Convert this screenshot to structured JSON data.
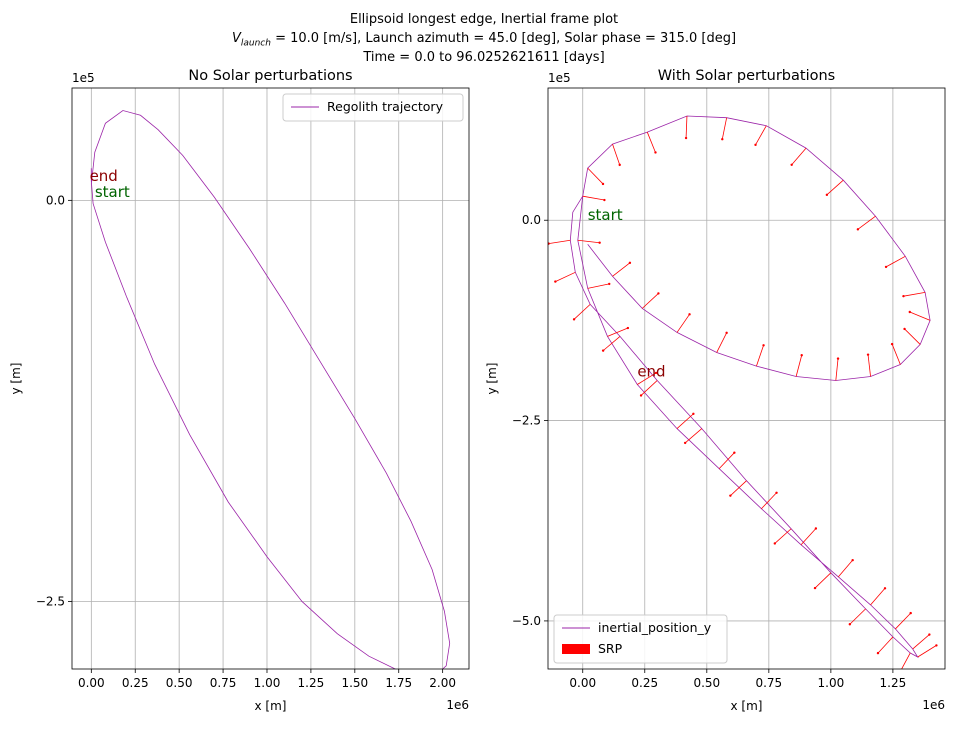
{
  "figure": {
    "title_line1": "Ellipsoid longest edge, Inertial frame plot",
    "title_line2_prefix": "V",
    "title_line2_sub": "launch",
    "title_line2_rest": " = 10.0 [m/s], Launch azimuth = 45.0 [deg], Solar phase = 315.0 [deg]",
    "title_line3": "Time = 0.0 to 96.0252621611 [days]"
  },
  "chart_data": [
    {
      "type": "line",
      "title": "No Solar perturbations",
      "xlabel": "x [m]",
      "ylabel": "y [m]",
      "x_offset_label": "1e6",
      "y_offset_label": "1e5",
      "x_scale": 1000000,
      "y_scale": 100000,
      "xlim": [
        -0.11,
        2.15
      ],
      "ylim": [
        -2.92,
        0.7
      ],
      "xticks": [
        0.0,
        0.25,
        0.5,
        0.75,
        1.0,
        1.25,
        1.5,
        1.75,
        2.0
      ],
      "xtick_labels": [
        "0.00",
        "0.25",
        "0.50",
        "0.75",
        "1.00",
        "1.25",
        "1.50",
        "1.75",
        "2.00"
      ],
      "yticks": [
        0.0,
        -2.5
      ],
      "ytick_labels": [
        "0.0",
        "−2.5"
      ],
      "grid": true,
      "legend": {
        "position": "top-right",
        "entries": [
          {
            "label": "Regolith trajectory",
            "color": "#9b24a8"
          }
        ]
      },
      "annotations": [
        {
          "text": "end",
          "x": -0.01,
          "y": 0.12,
          "color": "#8b0000"
        },
        {
          "text": "start",
          "x": 0.02,
          "y": 0.02,
          "color": "#006400"
        }
      ],
      "series": [
        {
          "label": "Regolith trajectory",
          "color": "#9b24a8",
          "x": [
            0.0,
            0.02,
            0.08,
            0.18,
            0.28,
            0.38,
            0.52,
            0.7,
            0.9,
            1.1,
            1.3,
            1.5,
            1.68,
            1.82,
            1.94,
            2.01,
            2.04,
            2.02,
            1.96,
            1.86,
            1.73,
            1.58,
            1.4,
            1.2,
            1.0,
            0.78,
            0.56,
            0.36,
            0.2,
            0.08,
            0.01,
            0.0,
            0.0
          ],
          "y": [
            0.1,
            0.3,
            0.48,
            0.56,
            0.53,
            0.44,
            0.28,
            0.02,
            -0.3,
            -0.64,
            -1.0,
            -1.36,
            -1.7,
            -2.0,
            -2.3,
            -2.56,
            -2.76,
            -2.9,
            -2.96,
            -2.96,
            -2.92,
            -2.84,
            -2.7,
            -2.5,
            -2.22,
            -1.88,
            -1.46,
            -1.02,
            -0.6,
            -0.26,
            -0.02,
            0.12,
            0.2
          ]
        }
      ]
    },
    {
      "type": "line",
      "title": "With Solar perturbations",
      "xlabel": "x [m]",
      "ylabel": "y [m]",
      "x_offset_label": "1e6",
      "y_offset_label": "1e5",
      "x_scale": 1000000,
      "y_scale": 100000,
      "xlim": [
        -0.14,
        1.46
      ],
      "ylim": [
        -5.6,
        1.65
      ],
      "xticks": [
        0.0,
        0.25,
        0.5,
        0.75,
        1.0,
        1.25
      ],
      "xtick_labels": [
        "0.00",
        "0.25",
        "0.50",
        "0.75",
        "1.00",
        "1.25"
      ],
      "yticks": [
        0.0,
        -2.5,
        -5.0
      ],
      "ytick_labels": [
        "0.0",
        "−2.5",
        "−5.0"
      ],
      "grid": true,
      "legend": {
        "position": "bottom-left",
        "entries": [
          {
            "label": "inertial_position_y",
            "color": "#9b24a8",
            "kind": "line"
          },
          {
            "label": "SRP",
            "color": "#ff0000",
            "kind": "patch"
          }
        ]
      },
      "annotations": [
        {
          "text": "start",
          "x": 0.02,
          "y": 0.0,
          "color": "#006400"
        },
        {
          "text": "end",
          "x": 0.22,
          "y": -1.95,
          "color": "#8b0000"
        }
      ],
      "series": [
        {
          "label": "inertial_position_y",
          "color": "#9b24a8",
          "x": [
            0.0,
            -0.04,
            -0.05,
            -0.03,
            0.03,
            0.15,
            0.3,
            0.48,
            0.66,
            0.84,
            1.0,
            1.14,
            1.25,
            1.32,
            1.35,
            1.33,
            1.26,
            1.16,
            1.03,
            0.88,
            0.72,
            0.55,
            0.38,
            0.22,
            0.1,
            0.02,
            -0.02,
            0.0,
            0.02,
            0.12,
            0.26,
            0.42,
            0.58,
            0.74,
            0.9,
            1.05,
            1.18,
            1.3,
            1.38,
            1.4,
            1.36,
            1.28,
            1.16,
            1.02,
            0.86,
            0.7,
            0.54,
            0.38,
            0.24,
            0.12,
            0.02
          ],
          "y": [
            0.3,
            0.1,
            -0.25,
            -0.65,
            -1.05,
            -1.45,
            -2.0,
            -2.6,
            -3.25,
            -3.85,
            -4.4,
            -4.85,
            -5.2,
            -5.4,
            -5.45,
            -5.35,
            -5.1,
            -4.8,
            -4.45,
            -4.05,
            -3.6,
            -3.1,
            -2.6,
            -2.05,
            -1.45,
            -0.85,
            -0.25,
            0.3,
            0.65,
            0.95,
            1.1,
            1.3,
            1.28,
            1.18,
            0.9,
            0.5,
            0.05,
            -0.45,
            -0.9,
            -1.25,
            -1.55,
            -1.8,
            -1.95,
            -2.0,
            -1.95,
            -1.82,
            -1.65,
            -1.4,
            -1.1,
            -0.7,
            -0.3
          ]
        }
      ]
    }
  ]
}
